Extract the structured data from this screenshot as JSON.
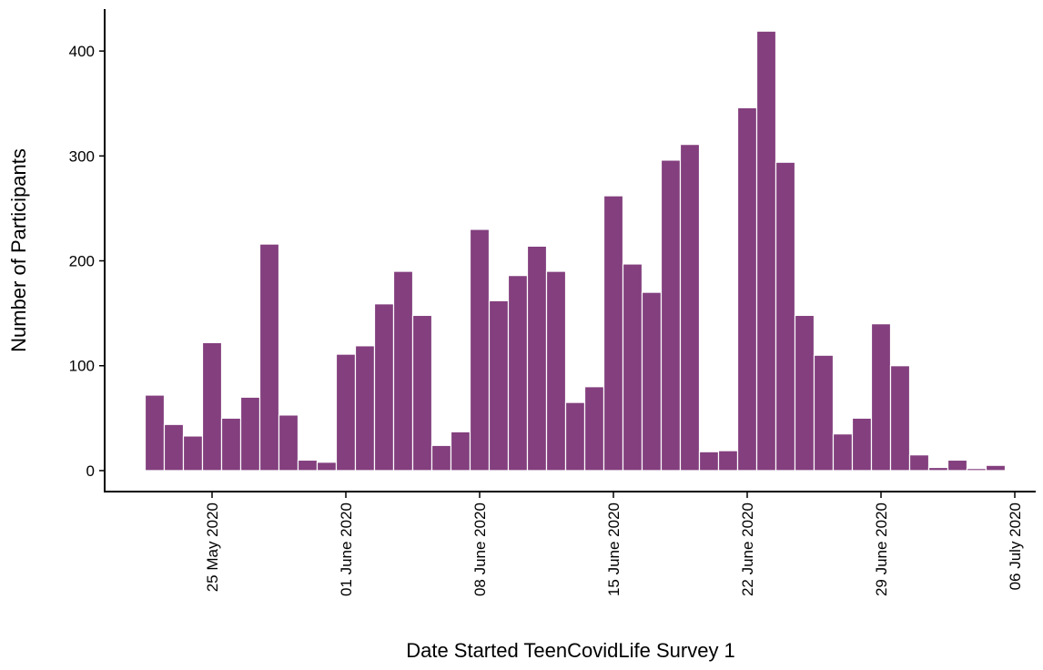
{
  "chart_data": {
    "type": "bar",
    "x_label": "Date Started TeenCovidLife Survey 1",
    "y_label": "Number of Participants",
    "x": [
      "2020-05-22",
      "2020-05-23",
      "2020-05-24",
      "2020-05-25",
      "2020-05-26",
      "2020-05-27",
      "2020-05-28",
      "2020-05-29",
      "2020-05-30",
      "2020-05-31",
      "2020-06-01",
      "2020-06-02",
      "2020-06-03",
      "2020-06-04",
      "2020-06-05",
      "2020-06-06",
      "2020-06-07",
      "2020-06-08",
      "2020-06-09",
      "2020-06-10",
      "2020-06-11",
      "2020-06-12",
      "2020-06-13",
      "2020-06-14",
      "2020-06-15",
      "2020-06-16",
      "2020-06-17",
      "2020-06-18",
      "2020-06-19",
      "2020-06-20",
      "2020-06-21",
      "2020-06-22",
      "2020-06-23",
      "2020-06-24",
      "2020-06-25",
      "2020-06-26",
      "2020-06-27",
      "2020-06-28",
      "2020-06-29",
      "2020-06-30",
      "2020-07-01",
      "2020-07-02",
      "2020-07-03",
      "2020-07-04",
      "2020-07-05"
    ],
    "values": [
      72,
      44,
      33,
      122,
      50,
      70,
      216,
      53,
      10,
      8,
      111,
      119,
      159,
      190,
      148,
      24,
      37,
      230,
      162,
      186,
      214,
      190,
      65,
      80,
      262,
      197,
      170,
      296,
      311,
      18,
      19,
      346,
      419,
      294,
      148,
      110,
      35,
      50,
      140,
      100,
      15,
      3,
      10,
      2,
      5
    ],
    "color": "#833f7e",
    "xlim": [
      "2020-05-19",
      "2020-07-07"
    ],
    "xticks": [
      {
        "value": "2020-05-25",
        "label": "25 May 2020"
      },
      {
        "value": "2020-06-01",
        "label": "01 June 2020"
      },
      {
        "value": "2020-06-08",
        "label": "08 June 2020"
      },
      {
        "value": "2020-06-15",
        "label": "15 June 2020"
      },
      {
        "value": "2020-06-22",
        "label": "22 June 2020"
      },
      {
        "value": "2020-06-29",
        "label": "29 June 2020"
      },
      {
        "value": "2020-07-06",
        "label": "06 July 2020"
      }
    ],
    "ylim": [
      -20,
      440
    ],
    "yticks": [
      0,
      100,
      200,
      300,
      400
    ],
    "grid": false
  }
}
